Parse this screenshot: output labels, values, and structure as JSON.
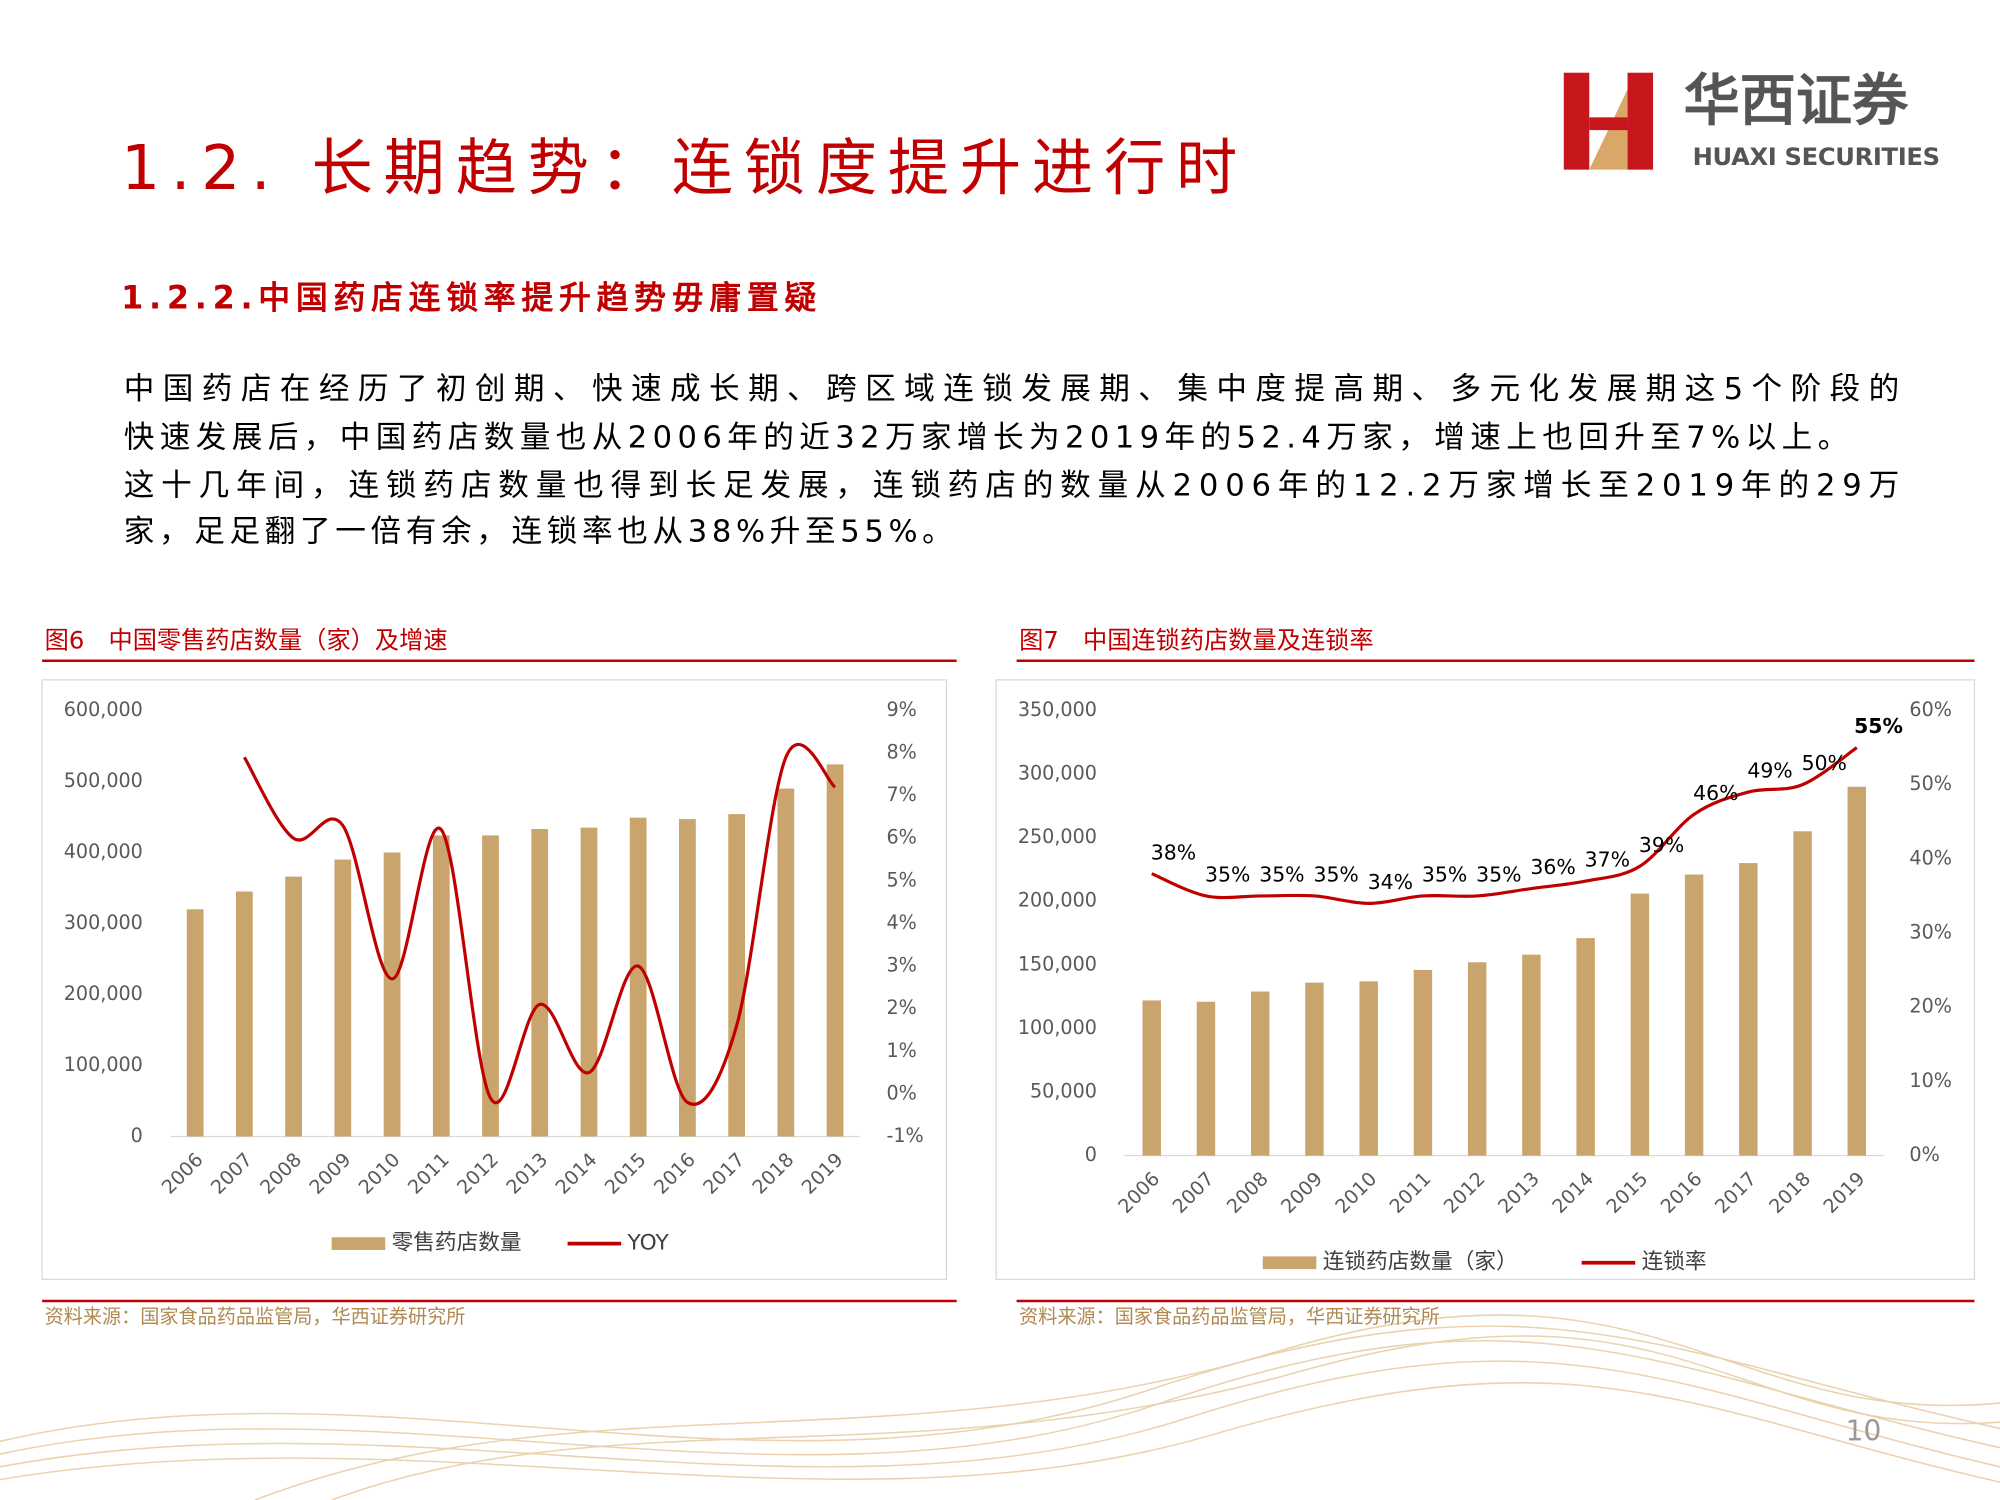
{
  "header": {
    "title": "1.2. 长期趋势：连锁度提升进行时",
    "logo_cn": "华西证券",
    "logo_en": "HUAXI SECURITIES"
  },
  "section": {
    "subtitle": "1.2.2.中国药店连锁率提升趋势毋庸置疑",
    "paragraph_lines": [
      "中国药店在经历了初创期、快速成长期、跨区域连锁发展期、集中度提高期、多元化发展期这5个阶段的",
      "快速发展后，中国药店数量也从2006年的近32万家增长为2019年的52.4万家，增速上也回升至7%以上。",
      "这十几年间，连锁药店数量也得到长足发展，连锁药店的数量从2006年的12.2万家增长至2019年的29万",
      "家，足足翻了一倍有余，连锁率也从38%升至55%。"
    ]
  },
  "chart_data": [
    {
      "type": "bar",
      "title": "图6　中国零售药店数量（家）及增速",
      "source": "资料来源：国家食品药品监管局，华西证券研究所",
      "categories": [
        "2006",
        "2007",
        "2008",
        "2009",
        "2010",
        "2011",
        "2012",
        "2013",
        "2014",
        "2015",
        "2016",
        "2017",
        "2018",
        "2019"
      ],
      "series": [
        {
          "name": "零售药店数量",
          "type": "bar",
          "color": "#c9a46c",
          "values": [
            320000,
            345000,
            366000,
            390000,
            400000,
            424000,
            424000,
            433000,
            435000,
            449000,
            447000,
            454000,
            490000,
            524000
          ]
        },
        {
          "name": "YOY",
          "type": "line",
          "axis": "y2",
          "color": "#c00000",
          "values": [
            null,
            7.9,
            6.0,
            6.3,
            2.7,
            6.2,
            -0.1,
            2.1,
            0.5,
            3.0,
            -0.2,
            1.6,
            7.9,
            7.2
          ]
        }
      ],
      "ylim": [
        0,
        600000
      ],
      "yticks": [
        0,
        {
          "value": 100000,
          "label": "100,000"
        },
        {
          "value": 200000,
          "label": "200,000"
        },
        {
          "value": 300000,
          "label": "300,000"
        },
        {
          "value": 400000,
          "label": "400,000"
        },
        {
          "value": 500000,
          "label": "500,000"
        },
        {
          "value": 600000,
          "label": "600,000"
        }
      ],
      "y2lim": [
        -1,
        9
      ],
      "y2ticks": [
        {
          "value": -1,
          "label": "-1%"
        },
        {
          "value": 0,
          "label": "0%"
        },
        {
          "value": 1,
          "label": "1%"
        },
        {
          "value": 2,
          "label": "2%"
        },
        {
          "value": 3,
          "label": "3%"
        },
        {
          "value": 4,
          "label": "4%"
        },
        {
          "value": 5,
          "label": "5%"
        },
        {
          "value": 6,
          "label": "6%"
        },
        {
          "value": 7,
          "label": "7%"
        },
        {
          "value": 8,
          "label": "8%"
        },
        {
          "value": 9,
          "label": "9%"
        }
      ],
      "grid": false,
      "legend": "bottom"
    },
    {
      "type": "bar",
      "title": "图7　中国连锁药店数量及连锁率",
      "source": "资料来源：国家食品药品监管局，华西证券研究所",
      "categories": [
        "2006",
        "2007",
        "2008",
        "2009",
        "2010",
        "2011",
        "2012",
        "2013",
        "2014",
        "2015",
        "2016",
        "2017",
        "2018",
        "2019"
      ],
      "series": [
        {
          "name": "连锁药店数量（家）",
          "type": "bar",
          "color": "#c9a46c",
          "values": [
            122000,
            121000,
            129000,
            136000,
            137000,
            146000,
            152000,
            158000,
            171000,
            206000,
            221000,
            230000,
            255000,
            290000
          ]
        },
        {
          "name": "连锁率",
          "type": "line",
          "axis": "y2",
          "color": "#c00000",
          "values": [
            38,
            35,
            35,
            35,
            34,
            35,
            35,
            36,
            37,
            39,
            46,
            49,
            50,
            55
          ],
          "value_labels": [
            "38%",
            "35%",
            "35%",
            "35%",
            "34%",
            "35%",
            "35%",
            "36%",
            "37%",
            "39%",
            "46%",
            "49%",
            "50%",
            "55%"
          ]
        }
      ],
      "ylim": [
        0,
        350000
      ],
      "yticks": [
        0,
        {
          "value": 50000,
          "label": "50,000"
        },
        {
          "value": 100000,
          "label": "100,000"
        },
        {
          "value": 150000,
          "label": "150,000"
        },
        {
          "value": 200000,
          "label": "200,000"
        },
        {
          "value": 250000,
          "label": "250,000"
        },
        {
          "value": 300000,
          "label": "300,000"
        },
        {
          "value": 350000,
          "label": "350,000"
        }
      ],
      "y2lim": [
        0,
        60
      ],
      "y2ticks": [
        {
          "value": 0,
          "label": "0%"
        },
        {
          "value": 10,
          "label": "10%"
        },
        {
          "value": 20,
          "label": "20%"
        },
        {
          "value": 30,
          "label": "30%"
        },
        {
          "value": 40,
          "label": "40%"
        },
        {
          "value": 50,
          "label": "50%"
        },
        {
          "value": 60,
          "label": "60%"
        }
      ],
      "grid": false,
      "legend": "bottom"
    }
  ],
  "page_number": "10"
}
